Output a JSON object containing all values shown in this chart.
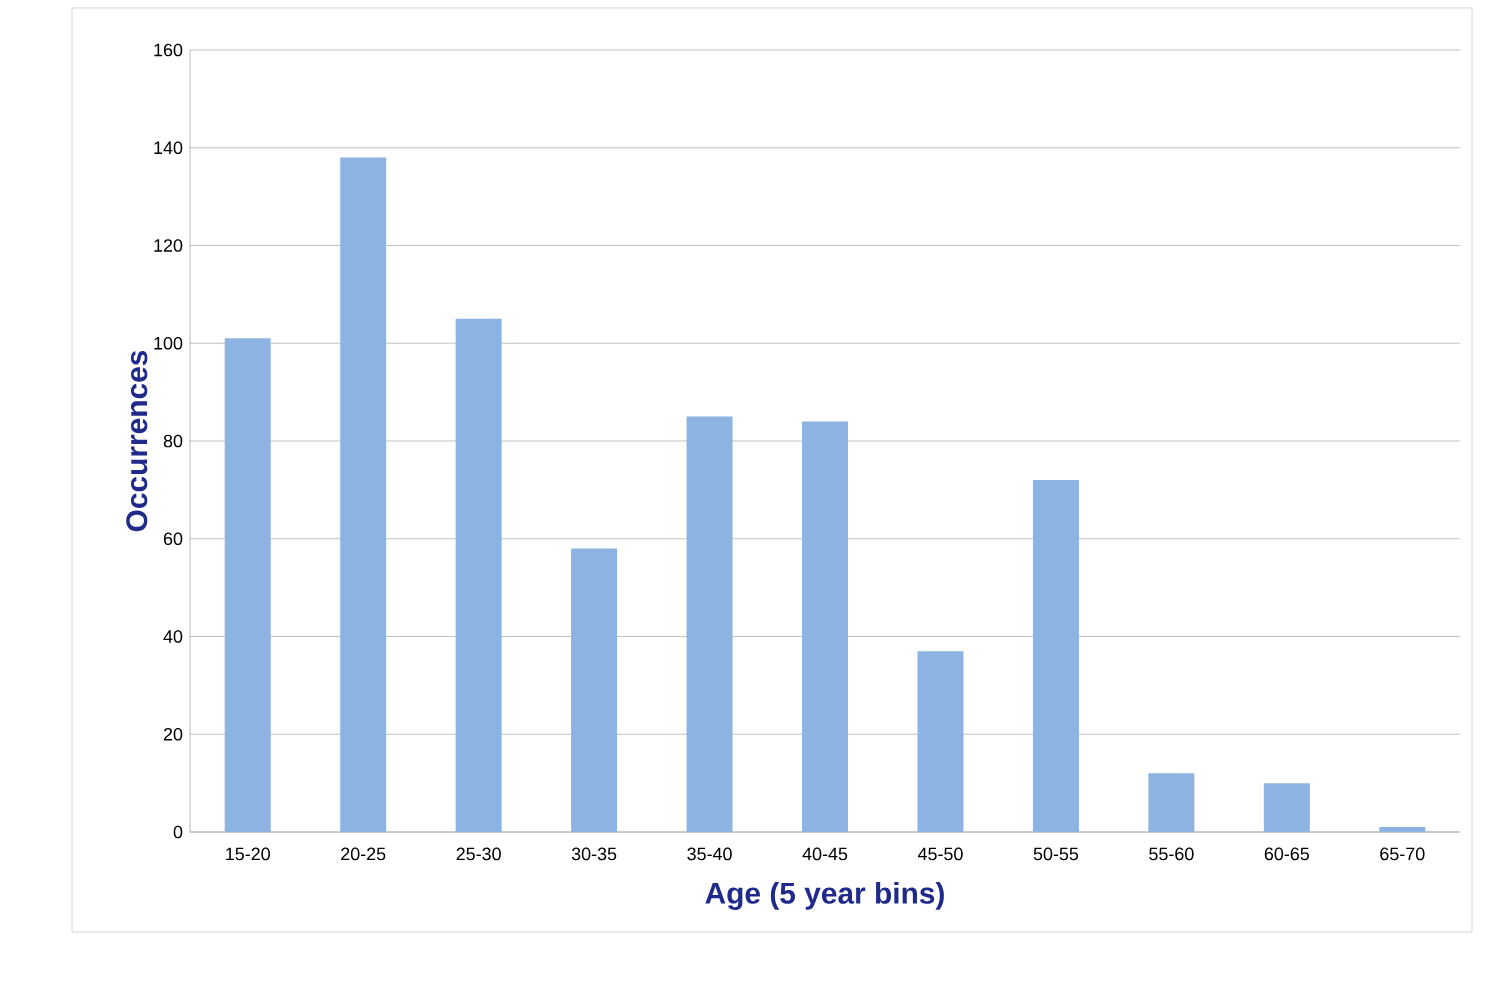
{
  "chart_data": {
    "type": "bar",
    "xlabel": "Age (5 year bins)",
    "ylabel": "Occurrences",
    "categories": [
      "15-20",
      "20-25",
      "25-30",
      "30-35",
      "35-40",
      "40-45",
      "45-50",
      "50-55",
      "55-60",
      "60-65",
      "65-70"
    ],
    "values": [
      101,
      138,
      105,
      58,
      85,
      84,
      37,
      72,
      12,
      10,
      1
    ],
    "color": "#8db3e2",
    "ylim": [
      0,
      160
    ],
    "yticks": [
      0,
      20,
      40,
      60,
      80,
      100,
      120,
      140,
      160
    ],
    "grid": "y"
  }
}
